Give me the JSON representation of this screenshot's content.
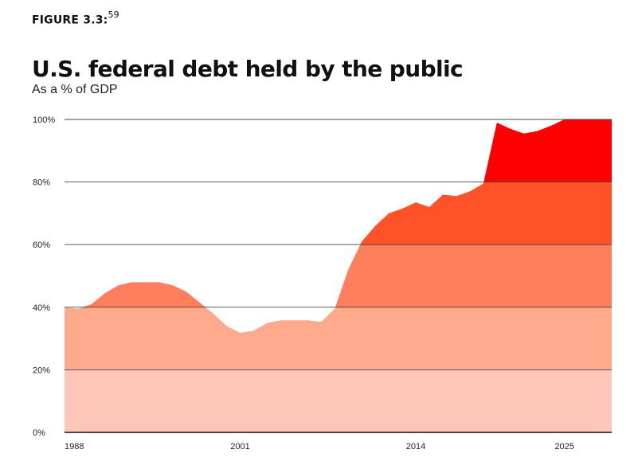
{
  "figure": {
    "label": "FIGURE 3.3",
    "separator": ":",
    "footnote": "59"
  },
  "chart_data": {
    "type": "area",
    "title": "U.S. federal debt held by the public",
    "subtitle": "As a % of GDP",
    "xlabel": "",
    "ylabel": "",
    "x_ticks": [
      "1988",
      "2001",
      "2014",
      "2025"
    ],
    "y_ticks": [
      "0%",
      "20%",
      "40%",
      "60%",
      "80%",
      "100%"
    ],
    "xlim": [
      1988,
      2028.5
    ],
    "ylim": [
      0,
      100
    ],
    "grid": true,
    "series": [
      {
        "x": [
          1988,
          1989,
          1990,
          1991,
          1992,
          1993,
          1994,
          1995,
          1996,
          1997,
          1998,
          1999,
          2000,
          2001,
          2002,
          2003,
          2004,
          2005,
          2006,
          2007,
          2008,
          2009,
          2010,
          2011,
          2012,
          2013,
          2014,
          2015,
          2016,
          2017,
          2018,
          2019,
          2020,
          2021,
          2022,
          2023,
          2024,
          2025,
          2026,
          2027,
          2028.5
        ],
        "values": [
          40,
          39.5,
          41,
          44.5,
          47,
          48,
          48,
          48,
          47,
          45,
          41.5,
          38,
          34,
          31.8,
          32.5,
          35,
          35.8,
          35.8,
          35.8,
          35.3,
          39.5,
          52,
          61,
          66,
          70,
          71.5,
          73.5,
          72,
          76,
          75.5,
          77,
          79.5,
          99,
          97,
          95.5,
          96.3,
          98,
          100,
          100,
          100,
          100
        ]
      }
    ],
    "bands": [
      {
        "from": 0,
        "to": 20,
        "color": "#fec6b8"
      },
      {
        "from": 20,
        "to": 40,
        "color": "#ffaa8c"
      },
      {
        "from": 40,
        "to": 60,
        "color": "#ff7e5c"
      },
      {
        "from": 60,
        "to": 80,
        "color": "#ff5229"
      },
      {
        "from": 80,
        "to": 100,
        "color": "#ff0000"
      }
    ]
  }
}
